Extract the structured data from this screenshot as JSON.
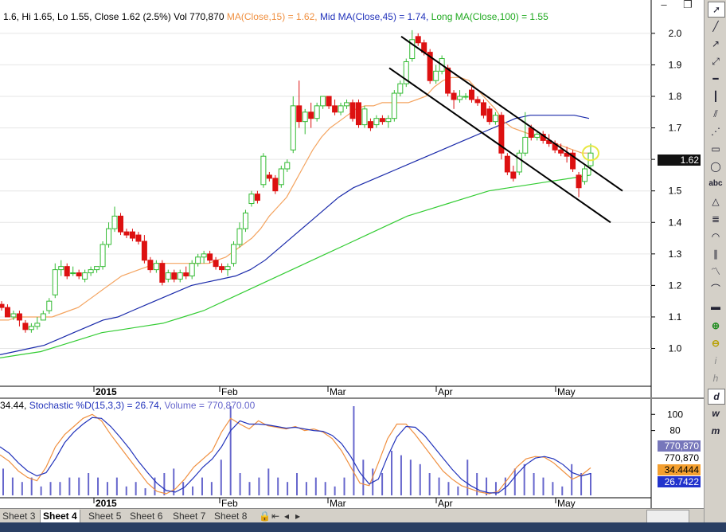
{
  "header": {
    "ohlc": "1.6, Hi 1.65, Lo 1.55, Close 1.62 (2.5%) Vol 770,870",
    "ma15_label": "MA(Close,15) = 1.62,",
    "mid_label": "Mid MA(Close,45) = 1.74,",
    "long_label": "Long MA(Close,100) = 1.55"
  },
  "lower_header": {
    "stoch_k": "34.44,",
    "stoch_d": "Stochastic %D(15,3,3) = 26.74,",
    "volume": "Volume = 770,870.00"
  },
  "window": {
    "minimize": "–",
    "restore": "❐"
  },
  "last_price_tag": "1.62",
  "lower_tags": {
    "t1": "770,870",
    "t2": "770,870",
    "t3": "34.4444",
    "t4": "26.7422"
  },
  "toolbar_icons": [
    "cursor-icon",
    "line-icon",
    "ray-icon",
    "extended-line-icon",
    "horizontal-line-icon",
    "vertical-line-icon",
    "channel-icon",
    "fan-icon",
    "rectangle-icon",
    "ellipse-icon",
    "text-abc-icon",
    "arrow-icon",
    "fib-icon",
    "arc-icon",
    "regression-icon",
    "zigzag-icon",
    "cycle-icon",
    "pattern-icon",
    "zoom-in-icon",
    "zoom-out-icon",
    "interval-i-icon",
    "interval-h-icon",
    "interval-d-icon",
    "interval-w-icon",
    "interval-m-icon"
  ],
  "toolbar_text": {
    "abc": "abc",
    "i": "i",
    "h": "h",
    "d": "d",
    "w": "w",
    "m": "m"
  },
  "tabs": [
    "Sheet 3",
    "Sheet 4",
    "Sheet 5",
    "Sheet 6",
    "Sheet 7",
    "Sheet 8"
  ],
  "active_tab": "Sheet 4",
  "colors": {
    "up": "#33bb33",
    "down": "#dd1111",
    "ma15": "#f4a460",
    "ma45": "#1a2aaa",
    "ma100": "#33cc33",
    "stochK": "#f09040",
    "stochD": "#2233bb",
    "volume": "#6666cc",
    "channel": "#000000"
  },
  "chart_data": [
    {
      "type": "candlestick",
      "price_axis": {
        "ticks": [
          "2.0",
          "1.9",
          "1.8",
          "1.7",
          "1.6",
          "1.5",
          "1.4",
          "1.3",
          "1.2",
          "1.1",
          "1.0"
        ],
        "ylim": [
          0.88,
          2.03
        ]
      },
      "date_axis": [
        "2015",
        "Feb",
        "Mar",
        "Apr",
        "May"
      ],
      "candles_approx": [
        {
          "o": 1.14,
          "h": 1.15,
          "l": 1.12,
          "c": 1.13
        },
        {
          "o": 1.13,
          "h": 1.14,
          "l": 1.1,
          "c": 1.1
        },
        {
          "o": 1.1,
          "h": 1.12,
          "l": 1.09,
          "c": 1.11
        },
        {
          "o": 1.11,
          "h": 1.12,
          "l": 1.07,
          "c": 1.09
        },
        {
          "o": 1.08,
          "h": 1.09,
          "l": 1.05,
          "c": 1.06
        },
        {
          "o": 1.06,
          "h": 1.08,
          "l": 1.05,
          "c": 1.07
        },
        {
          "o": 1.07,
          "h": 1.1,
          "l": 1.06,
          "c": 1.08
        },
        {
          "o": 1.09,
          "h": 1.12,
          "l": 1.09,
          "c": 1.11
        },
        {
          "o": 1.12,
          "h": 1.16,
          "l": 1.11,
          "c": 1.15
        },
        {
          "o": 1.17,
          "h": 1.27,
          "l": 1.16,
          "c": 1.25
        },
        {
          "o": 1.25,
          "h": 1.28,
          "l": 1.23,
          "c": 1.26
        },
        {
          "o": 1.26,
          "h": 1.27,
          "l": 1.22,
          "c": 1.23
        },
        {
          "o": 1.24,
          "h": 1.26,
          "l": 1.23,
          "c": 1.24
        },
        {
          "o": 1.24,
          "h": 1.25,
          "l": 1.22,
          "c": 1.23
        },
        {
          "o": 1.22,
          "h": 1.25,
          "l": 1.21,
          "c": 1.24
        },
        {
          "o": 1.24,
          "h": 1.26,
          "l": 1.23,
          "c": 1.25
        },
        {
          "o": 1.25,
          "h": 1.26,
          "l": 1.24,
          "c": 1.26
        },
        {
          "o": 1.26,
          "h": 1.34,
          "l": 1.25,
          "c": 1.33
        },
        {
          "o": 1.33,
          "h": 1.4,
          "l": 1.32,
          "c": 1.38
        },
        {
          "o": 1.38,
          "h": 1.45,
          "l": 1.37,
          "c": 1.42
        },
        {
          "o": 1.42,
          "h": 1.43,
          "l": 1.36,
          "c": 1.37
        },
        {
          "o": 1.37,
          "h": 1.38,
          "l": 1.35,
          "c": 1.36
        },
        {
          "o": 1.37,
          "h": 1.38,
          "l": 1.34,
          "c": 1.35
        },
        {
          "o": 1.36,
          "h": 1.37,
          "l": 1.33,
          "c": 1.34
        },
        {
          "o": 1.34,
          "h": 1.36,
          "l": 1.27,
          "c": 1.28
        },
        {
          "o": 1.28,
          "h": 1.29,
          "l": 1.24,
          "c": 1.25
        },
        {
          "o": 1.25,
          "h": 1.28,
          "l": 1.24,
          "c": 1.27
        },
        {
          "o": 1.27,
          "h": 1.28,
          "l": 1.2,
          "c": 1.21
        },
        {
          "o": 1.22,
          "h": 1.25,
          "l": 1.21,
          "c": 1.24
        },
        {
          "o": 1.24,
          "h": 1.25,
          "l": 1.21,
          "c": 1.22
        },
        {
          "o": 1.22,
          "h": 1.25,
          "l": 1.21,
          "c": 1.24
        },
        {
          "o": 1.24,
          "h": 1.26,
          "l": 1.22,
          "c": 1.23
        },
        {
          "o": 1.23,
          "h": 1.28,
          "l": 1.22,
          "c": 1.27
        },
        {
          "o": 1.27,
          "h": 1.3,
          "l": 1.26,
          "c": 1.29
        },
        {
          "o": 1.29,
          "h": 1.31,
          "l": 1.27,
          "c": 1.3
        },
        {
          "o": 1.3,
          "h": 1.31,
          "l": 1.27,
          "c": 1.28
        },
        {
          "o": 1.28,
          "h": 1.29,
          "l": 1.25,
          "c": 1.26
        },
        {
          "o": 1.26,
          "h": 1.27,
          "l": 1.24,
          "c": 1.25
        },
        {
          "o": 1.25,
          "h": 1.27,
          "l": 1.23,
          "c": 1.26
        },
        {
          "o": 1.27,
          "h": 1.34,
          "l": 1.26,
          "c": 1.33
        },
        {
          "o": 1.33,
          "h": 1.4,
          "l": 1.32,
          "c": 1.38
        },
        {
          "o": 1.38,
          "h": 1.44,
          "l": 1.37,
          "c": 1.43
        },
        {
          "o": 1.46,
          "h": 1.5,
          "l": 1.45,
          "c": 1.49
        },
        {
          "o": 1.49,
          "h": 1.5,
          "l": 1.46,
          "c": 1.47
        },
        {
          "o": 1.52,
          "h": 1.62,
          "l": 1.51,
          "c": 1.61
        },
        {
          "o": 1.55,
          "h": 1.56,
          "l": 1.53,
          "c": 1.54
        },
        {
          "o": 1.54,
          "h": 1.55,
          "l": 1.49,
          "c": 1.5
        },
        {
          "o": 1.52,
          "h": 1.58,
          "l": 1.51,
          "c": 1.57
        },
        {
          "o": 1.57,
          "h": 1.6,
          "l": 1.56,
          "c": 1.59
        },
        {
          "o": 1.63,
          "h": 1.8,
          "l": 1.62,
          "c": 1.77
        },
        {
          "o": 1.77,
          "h": 1.85,
          "l": 1.7,
          "c": 1.72
        },
        {
          "o": 1.72,
          "h": 1.76,
          "l": 1.68,
          "c": 1.75
        },
        {
          "o": 1.75,
          "h": 1.78,
          "l": 1.7,
          "c": 1.73
        },
        {
          "o": 1.73,
          "h": 1.78,
          "l": 1.72,
          "c": 1.77
        },
        {
          "o": 1.77,
          "h": 1.8,
          "l": 1.76,
          "c": 1.8
        },
        {
          "o": 1.8,
          "h": 1.8,
          "l": 1.76,
          "c": 1.77
        },
        {
          "o": 1.77,
          "h": 1.79,
          "l": 1.74,
          "c": 1.75
        },
        {
          "o": 1.75,
          "h": 1.78,
          "l": 1.74,
          "c": 1.77
        },
        {
          "o": 1.77,
          "h": 1.79,
          "l": 1.76,
          "c": 1.78
        },
        {
          "o": 1.78,
          "h": 1.79,
          "l": 1.72,
          "c": 1.73
        },
        {
          "o": 1.78,
          "h": 1.79,
          "l": 1.7,
          "c": 1.71
        },
        {
          "o": 1.71,
          "h": 1.77,
          "l": 1.7,
          "c": 1.76
        },
        {
          "o": 1.72,
          "h": 1.73,
          "l": 1.69,
          "c": 1.7
        },
        {
          "o": 1.71,
          "h": 1.74,
          "l": 1.7,
          "c": 1.73
        },
        {
          "o": 1.73,
          "h": 1.74,
          "l": 1.71,
          "c": 1.72
        },
        {
          "o": 1.72,
          "h": 1.74,
          "l": 1.7,
          "c": 1.73
        },
        {
          "o": 1.73,
          "h": 1.82,
          "l": 1.72,
          "c": 1.81
        },
        {
          "o": 1.81,
          "h": 1.85,
          "l": 1.8,
          "c": 1.84
        },
        {
          "o": 1.84,
          "h": 1.92,
          "l": 1.83,
          "c": 1.91
        },
        {
          "o": 1.92,
          "h": 2.01,
          "l": 1.91,
          "c": 1.98
        },
        {
          "o": 1.99,
          "h": 2.0,
          "l": 1.96,
          "c": 1.97
        },
        {
          "o": 1.97,
          "h": 1.98,
          "l": 1.93,
          "c": 1.94
        },
        {
          "o": 1.94,
          "h": 1.95,
          "l": 1.84,
          "c": 1.85
        },
        {
          "o": 1.85,
          "h": 1.9,
          "l": 1.84,
          "c": 1.88
        },
        {
          "o": 1.88,
          "h": 1.93,
          "l": 1.87,
          "c": 1.92
        },
        {
          "o": 1.89,
          "h": 1.9,
          "l": 1.8,
          "c": 1.81
        },
        {
          "o": 1.81,
          "h": 1.82,
          "l": 1.76,
          "c": 1.79
        },
        {
          "o": 1.79,
          "h": 1.82,
          "l": 1.78,
          "c": 1.8
        },
        {
          "o": 1.8,
          "h": 1.81,
          "l": 1.79,
          "c": 1.8
        },
        {
          "o": 1.82,
          "h": 1.83,
          "l": 1.78,
          "c": 1.79
        },
        {
          "o": 1.79,
          "h": 1.8,
          "l": 1.77,
          "c": 1.78
        },
        {
          "o": 1.78,
          "h": 1.79,
          "l": 1.73,
          "c": 1.74
        },
        {
          "o": 1.76,
          "h": 1.77,
          "l": 1.71,
          "c": 1.72
        },
        {
          "o": 1.72,
          "h": 1.75,
          "l": 1.71,
          "c": 1.74
        },
        {
          "o": 1.74,
          "h": 1.75,
          "l": 1.6,
          "c": 1.62
        },
        {
          "o": 1.61,
          "h": 1.62,
          "l": 1.55,
          "c": 1.56
        },
        {
          "o": 1.56,
          "h": 1.58,
          "l": 1.53,
          "c": 1.54
        },
        {
          "o": 1.56,
          "h": 1.63,
          "l": 1.55,
          "c": 1.62
        },
        {
          "o": 1.62,
          "h": 1.75,
          "l": 1.61,
          "c": 1.67
        },
        {
          "o": 1.7,
          "h": 1.71,
          "l": 1.66,
          "c": 1.67
        },
        {
          "o": 1.67,
          "h": 1.69,
          "l": 1.66,
          "c": 1.68
        },
        {
          "o": 1.68,
          "h": 1.69,
          "l": 1.65,
          "c": 1.66
        },
        {
          "o": 1.66,
          "h": 1.68,
          "l": 1.64,
          "c": 1.65
        },
        {
          "o": 1.65,
          "h": 1.66,
          "l": 1.62,
          "c": 1.63
        },
        {
          "o": 1.63,
          "h": 1.65,
          "l": 1.61,
          "c": 1.62
        },
        {
          "o": 1.62,
          "h": 1.64,
          "l": 1.59,
          "c": 1.61
        },
        {
          "o": 1.62,
          "h": 1.63,
          "l": 1.56,
          "c": 1.57
        },
        {
          "o": 1.55,
          "h": 1.56,
          "l": 1.48,
          "c": 1.51
        },
        {
          "o": 1.53,
          "h": 1.58,
          "l": 1.52,
          "c": 1.57
        },
        {
          "o": 1.58,
          "h": 1.65,
          "l": 1.55,
          "c": 1.62
        }
      ],
      "ma15_approx": [
        1.09,
        1.09,
        1.1,
        1.1,
        1.1,
        1.1,
        1.1,
        1.11,
        1.12,
        1.13,
        1.15,
        1.17,
        1.19,
        1.21,
        1.23,
        1.24,
        1.25,
        1.26,
        1.27,
        1.27,
        1.27,
        1.27,
        1.27,
        1.27,
        1.27,
        1.28,
        1.29,
        1.31,
        1.33,
        1.35,
        1.38,
        1.42,
        1.45,
        1.48,
        1.53,
        1.58,
        1.63,
        1.67,
        1.7,
        1.72,
        1.74,
        1.76,
        1.77,
        1.77,
        1.78,
        1.78,
        1.78,
        1.78,
        1.79,
        1.8,
        1.83,
        1.85,
        1.86,
        1.86,
        1.85,
        1.82,
        1.79,
        1.76,
        1.72,
        1.7,
        1.69,
        1.68,
        1.67,
        1.66,
        1.65,
        1.64,
        1.63,
        1.62,
        1.62
      ],
      "ma45_approx": [
        0.98,
        0.99,
        1.0,
        1.01,
        1.03,
        1.05,
        1.07,
        1.09,
        1.1,
        1.12,
        1.14,
        1.16,
        1.18,
        1.2,
        1.21,
        1.22,
        1.23,
        1.25,
        1.28,
        1.32,
        1.36,
        1.4,
        1.44,
        1.48,
        1.51,
        1.53,
        1.55,
        1.57,
        1.59,
        1.61,
        1.63,
        1.65,
        1.67,
        1.69,
        1.71,
        1.73,
        1.74,
        1.74,
        1.74,
        1.74,
        1.73
      ],
      "ma100_approx": [
        0.97,
        0.98,
        0.99,
        1.01,
        1.03,
        1.05,
        1.06,
        1.07,
        1.08,
        1.1,
        1.12,
        1.15,
        1.18,
        1.21,
        1.24,
        1.27,
        1.3,
        1.33,
        1.36,
        1.39,
        1.42,
        1.44,
        1.46,
        1.48,
        1.5,
        1.51,
        1.52,
        1.53,
        1.54,
        1.55
      ],
      "channel_upper": [
        [
          1.99
        ],
        [
          1.5
        ]
      ],
      "channel_lower": [
        [
          1.89
        ],
        [
          1.4
        ]
      ]
    },
    {
      "type": "line",
      "name": "stochastic",
      "y_ticks": [
        "100",
        "80"
      ],
      "ylim": [
        0,
        115
      ],
      "k_approx": [
        50,
        42,
        30,
        22,
        18,
        35,
        60,
        75,
        85,
        95,
        100,
        92,
        75,
        60,
        45,
        30,
        15,
        5,
        2,
        8,
        20,
        35,
        45,
        55,
        78,
        95,
        88,
        82,
        92,
        86,
        84,
        82,
        85,
        80,
        82,
        78,
        70,
        55,
        35,
        15,
        12,
        40,
        70,
        88,
        88,
        75,
        60,
        45,
        30,
        20,
        12,
        8,
        4,
        2,
        5,
        20,
        35,
        45,
        48,
        47,
        40,
        30,
        20,
        25,
        34
      ],
      "d_approx": [
        60,
        52,
        40,
        30,
        24,
        28,
        45,
        65,
        78,
        88,
        96,
        95,
        85,
        72,
        58,
        42,
        28,
        15,
        6,
        4,
        10,
        22,
        35,
        45,
        60,
        80,
        92,
        88,
        88,
        87,
        85,
        83,
        84,
        82,
        80,
        79,
        74,
        64,
        48,
        28,
        14,
        20,
        48,
        72,
        85,
        84,
        74,
        60,
        46,
        32,
        20,
        12,
        6,
        3,
        3,
        12,
        26,
        38,
        46,
        48,
        45,
        38,
        28,
        24,
        27
      ],
      "volume_approx": [
        30,
        20,
        15,
        20,
        10,
        15,
        15,
        20,
        20,
        25,
        20,
        15,
        20,
        10,
        15,
        8,
        20,
        25,
        30,
        15,
        10,
        20,
        15,
        40,
        100,
        25,
        15,
        20,
        30,
        20,
        15,
        25,
        15,
        20,
        15,
        10,
        20,
        100,
        40,
        30,
        25,
        50,
        45,
        40,
        35,
        25,
        20,
        15,
        10,
        40,
        25,
        20,
        15,
        20,
        30,
        35,
        25,
        20,
        15,
        10,
        35,
        25,
        25
      ]
    }
  ]
}
